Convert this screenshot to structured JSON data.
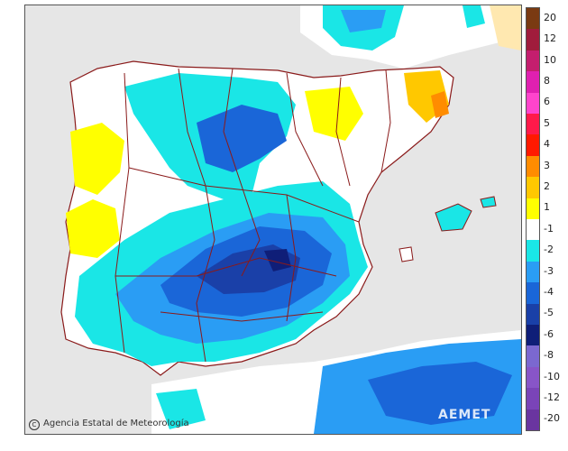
{
  "map": {
    "credit": "Agencia Estatal de Meteorología",
    "credit_symbol": "C",
    "watermark": "AEMET"
  },
  "legend": {
    "items": [
      {
        "label": "20",
        "color": "#7a3a12"
      },
      {
        "label": "12",
        "color": "#a01c3c"
      },
      {
        "label": "10",
        "color": "#c41e6e"
      },
      {
        "label": "8",
        "color": "#e020b0"
      },
      {
        "label": "6",
        "color": "#ff44cc"
      },
      {
        "label": "5",
        "color": "#ff1a4a"
      },
      {
        "label": "4",
        "color": "#ff1a00"
      },
      {
        "label": "3",
        "color": "#ff8c00"
      },
      {
        "label": "2",
        "color": "#ffc800"
      },
      {
        "label": "1",
        "color": "#ffff00"
      },
      {
        "label": "-1",
        "color": "#ffffff"
      },
      {
        "label": "-2",
        "color": "#1ae6e6"
      },
      {
        "label": "-3",
        "color": "#2a9df4"
      },
      {
        "label": "-4",
        "color": "#1a66d8"
      },
      {
        "label": "-5",
        "color": "#1a40a8"
      },
      {
        "label": "-6",
        "color": "#0f1e78"
      },
      {
        "label": "-8",
        "color": "#7b68d0"
      },
      {
        "label": "-10",
        "color": "#8855c8"
      },
      {
        "label": "-12",
        "color": "#7a44b8"
      },
      {
        "label": "-20",
        "color": "#6a35a0"
      }
    ]
  }
}
